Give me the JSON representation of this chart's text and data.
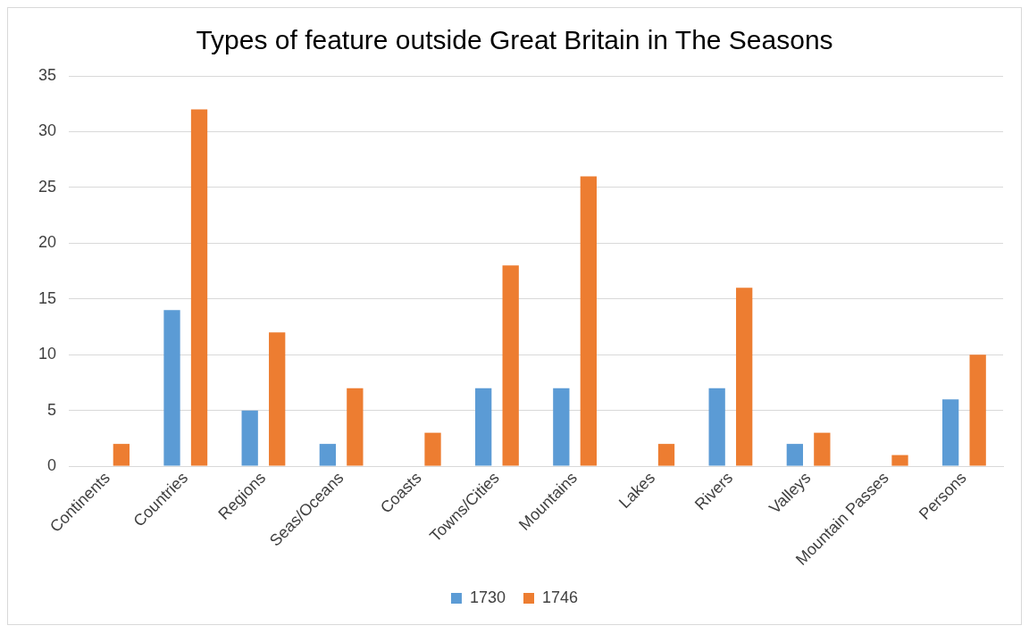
{
  "chart_data": {
    "type": "bar",
    "title": "Types of feature outside Great Britain in The Seasons",
    "categories": [
      "Continents",
      "Countries",
      "Regions",
      "Seas/Oceans",
      "Coasts",
      "Towns/Cities",
      "Mountains",
      "Lakes",
      "Rivers",
      "Valleys",
      "Mountain Passes",
      "Persons"
    ],
    "series": [
      {
        "name": "1730",
        "color": "#5b9bd5",
        "values": [
          0,
          14,
          5,
          2,
          0,
          7,
          7,
          0,
          7,
          2,
          0,
          6
        ]
      },
      {
        "name": "1746",
        "color": "#ed7d31",
        "values": [
          2,
          32,
          12,
          7,
          3,
          18,
          26,
          2,
          16,
          3,
          1,
          10
        ]
      }
    ],
    "ylim": [
      0,
      35
    ],
    "yticks": [
      0,
      5,
      10,
      15,
      20,
      25,
      30,
      35
    ],
    "grid": "y",
    "legend": "bottom"
  }
}
